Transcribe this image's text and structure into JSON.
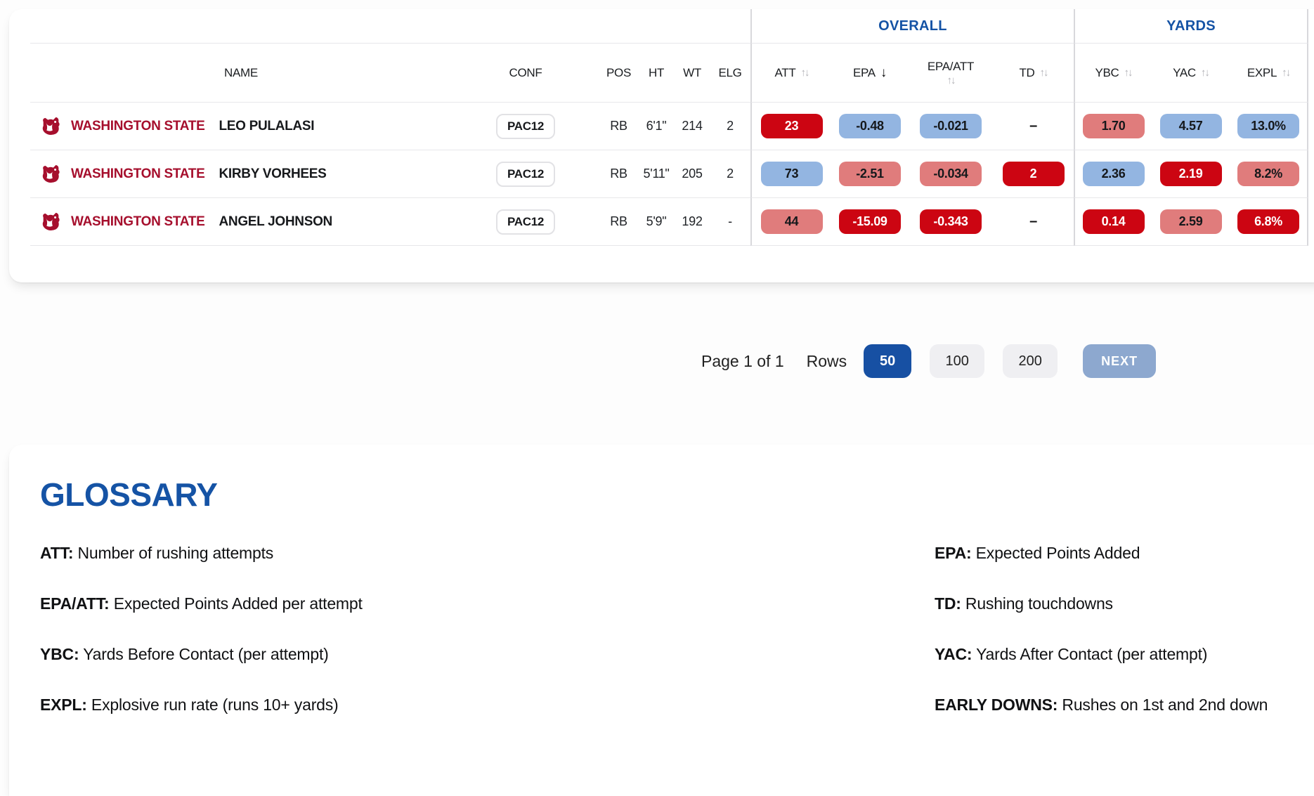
{
  "colors": {
    "accent_blue": "#1553A5",
    "team_crimson": "#A60F2D",
    "pill_strong_red": "#CC0512",
    "pill_light_red": "#E07C7C",
    "pill_light_blue": "#93B5E1",
    "next_button": "#8DA8CF",
    "rows_active_button": "#1750A3"
  },
  "icons": {
    "sort_both": "↑↓",
    "sort_desc": "↓",
    "team_logo": "washington-state-cougar"
  },
  "table": {
    "groups": {
      "overall": "OVERALL",
      "yards": "YARDS"
    },
    "headers": [
      {
        "key": "name",
        "label": "NAME",
        "sort": "none"
      },
      {
        "key": "conf",
        "label": "CONF",
        "sort": "none"
      },
      {
        "key": "pos",
        "label": "POS",
        "sort": "none"
      },
      {
        "key": "ht",
        "label": "HT",
        "sort": "none"
      },
      {
        "key": "wt",
        "label": "WT",
        "sort": "none"
      },
      {
        "key": "elg",
        "label": "ELG",
        "sort": "none"
      },
      {
        "key": "att",
        "label": "ATT",
        "sort": "both"
      },
      {
        "key": "epa",
        "label": "EPA",
        "sort": "desc"
      },
      {
        "key": "epa_att",
        "label": "EPA/ATT",
        "sort": "both-below"
      },
      {
        "key": "td",
        "label": "TD",
        "sort": "both"
      },
      {
        "key": "ybc",
        "label": "YBC",
        "sort": "both"
      },
      {
        "key": "yac",
        "label": "YAC",
        "sort": "both"
      },
      {
        "key": "expl",
        "label": "EXPL",
        "sort": "both"
      }
    ],
    "rows": [
      {
        "team": "WASHINGTON STATE",
        "name": "LEO PULALASI",
        "conf": "PAC12",
        "pos": "RB",
        "ht": "6'1\"",
        "wt": "214",
        "elg": "2",
        "stats": {
          "att": {
            "v": "23",
            "c": "hi"
          },
          "epa": {
            "v": "-0.48",
            "c": "blue"
          },
          "epa_att": {
            "v": "-0.021",
            "c": "blue"
          },
          "td": {
            "v": "–",
            "c": "none"
          },
          "ybc": {
            "v": "1.70",
            "c": "mid"
          },
          "yac": {
            "v": "4.57",
            "c": "blue"
          },
          "expl": {
            "v": "13.0%",
            "c": "blue"
          }
        }
      },
      {
        "team": "WASHINGTON STATE",
        "name": "KIRBY VORHEES",
        "conf": "PAC12",
        "pos": "RB",
        "ht": "5'11\"",
        "wt": "205",
        "elg": "2",
        "stats": {
          "att": {
            "v": "73",
            "c": "blue"
          },
          "epa": {
            "v": "-2.51",
            "c": "mid"
          },
          "epa_att": {
            "v": "-0.034",
            "c": "mid"
          },
          "td": {
            "v": "2",
            "c": "hi"
          },
          "ybc": {
            "v": "2.36",
            "c": "blue"
          },
          "yac": {
            "v": "2.19",
            "c": "hi"
          },
          "expl": {
            "v": "8.2%",
            "c": "mid"
          }
        }
      },
      {
        "team": "WASHINGTON STATE",
        "name": "ANGEL JOHNSON",
        "conf": "PAC12",
        "pos": "RB",
        "ht": "5'9\"",
        "wt": "192",
        "elg": "-",
        "stats": {
          "att": {
            "v": "44",
            "c": "mid"
          },
          "epa": {
            "v": "-15.09",
            "c": "hi"
          },
          "epa_att": {
            "v": "-0.343",
            "c": "hi"
          },
          "td": {
            "v": "–",
            "c": "none"
          },
          "ybc": {
            "v": "0.14",
            "c": "hi"
          },
          "yac": {
            "v": "2.59",
            "c": "mid"
          },
          "expl": {
            "v": "6.8%",
            "c": "hi"
          }
        }
      }
    ]
  },
  "pagination": {
    "page_text": "Page 1 of 1",
    "rows_label": "Rows",
    "row_options": [
      {
        "label": "50",
        "active": true
      },
      {
        "label": "100",
        "active": false
      },
      {
        "label": "200",
        "active": false
      }
    ],
    "next_label": "NEXT"
  },
  "glossary": {
    "title": "GLOSSARY",
    "items": [
      {
        "term": "ATT:",
        "def": "Number of rushing attempts",
        "col": 0
      },
      {
        "term": "EPA:",
        "def": "Expected Points Added",
        "col": 1
      },
      {
        "term": "EPA/ATT:",
        "def": "Expected Points Added per attempt",
        "col": 0
      },
      {
        "term": "TD:",
        "def": "Rushing touchdowns",
        "col": 1
      },
      {
        "term": "YBC:",
        "def": "Yards Before Contact (per attempt)",
        "col": 0
      },
      {
        "term": "YAC:",
        "def": "Yards After Contact (per attempt)",
        "col": 1
      },
      {
        "term": "EXPL:",
        "def": "Explosive run rate (runs 10+ yards)",
        "col": 0
      },
      {
        "term": "EARLY DOWNS:",
        "def": "Rushes on 1st and 2nd down",
        "col": 1
      }
    ]
  }
}
